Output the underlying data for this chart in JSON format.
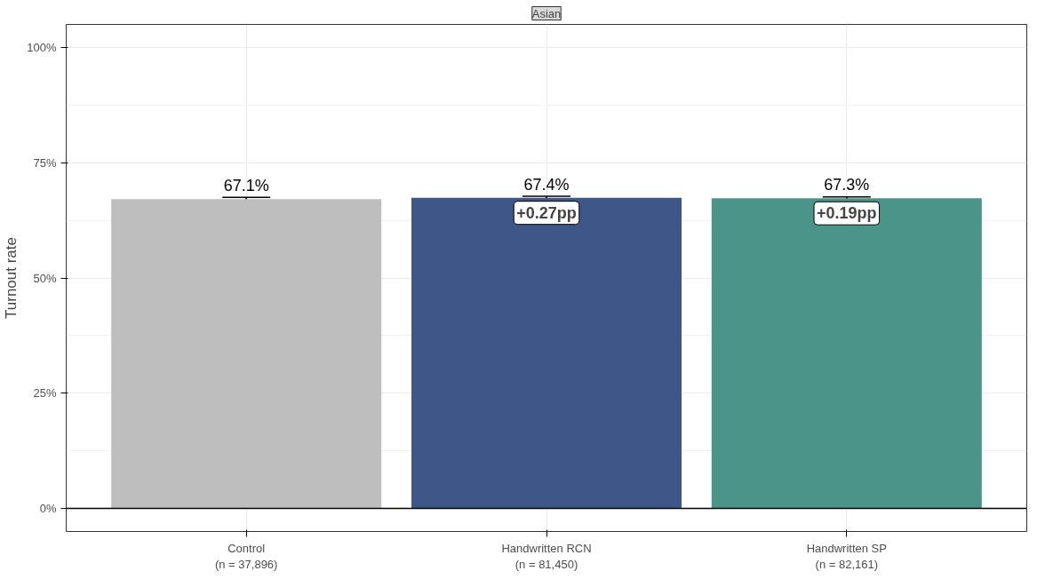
{
  "chart_data": {
    "type": "bar",
    "title": "Asian",
    "ylabel": "Turnout rate",
    "categories": [
      "Control\n(n = 37,896)",
      "Handwritten RCN\n(n = 81,450)",
      "Handwritten SP\n(n = 82,161)"
    ],
    "values": [
      67.1,
      67.4,
      67.3
    ],
    "colors": [
      "#bebebe",
      "#3e5788",
      "#4a9489"
    ],
    "errors": [
      0.4,
      0.3,
      0.3
    ],
    "value_labels": [
      "67.1%",
      "67.4%",
      "67.3%"
    ],
    "annotations": [
      {
        "text": "+0.27pp",
        "x": "Handwritten RCN\n(n = 81,450)",
        "y": 67.4
      },
      {
        "text": "+0.19pp",
        "x": "Handwritten SP\n(n = 82,161)",
        "y": 67.3
      }
    ],
    "ylim": [
      -5,
      105
    ],
    "yticks": [
      {
        "value": 0,
        "label": "0%"
      },
      {
        "value": 12.5,
        "label": null
      },
      {
        "value": 25,
        "label": "25%"
      },
      {
        "value": 37.5,
        "label": null
      },
      {
        "value": 50,
        "label": "50%"
      },
      {
        "value": 62.5,
        "label": null
      },
      {
        "value": 75,
        "label": "75%"
      },
      {
        "value": 87.5,
        "label": null
      },
      {
        "value": 100,
        "label": "100%"
      }
    ],
    "ref_lines": [
      {
        "axis": "y",
        "value": 0,
        "color": "#000000"
      }
    ],
    "grid": true
  }
}
